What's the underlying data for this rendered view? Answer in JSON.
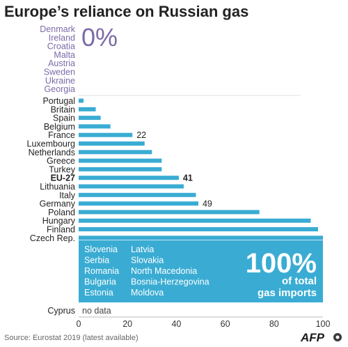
{
  "chart_data": {
    "type": "bar",
    "orientation": "horizontal",
    "title": "Europe’s reliance on Russian gas",
    "unit_note": "of total gas imports",
    "xlim": [
      0,
      100
    ],
    "x_ticks": [
      "0",
      "20",
      "40",
      "60",
      "80",
      "100"
    ],
    "grid": false,
    "bar_color": "#3aacd3",
    "zero_group": {
      "label": "0%",
      "countries": [
        "Denmark",
        "Ireland",
        "Croatia",
        "Malta",
        "Austria",
        "Sweden",
        "Ukraine",
        "Georgia"
      ]
    },
    "categories": [
      "Portugal",
      "Britain",
      "Spain",
      "Belgium",
      "France",
      "Luxembourg",
      "Netherlands",
      "Greece",
      "Turkey",
      "EU-27",
      "Lithuania",
      "Italy",
      "Germany",
      "Poland",
      "Hungary",
      "Finland",
      "Czech Rep."
    ],
    "values": [
      2,
      7,
      9,
      13,
      22,
      27,
      30,
      34,
      34,
      41,
      43,
      48,
      49,
      74,
      95,
      98,
      100
    ],
    "value_labels": {
      "France": "22",
      "EU-27": "41",
      "Germany": "49"
    },
    "full_group": {
      "label": "100%",
      "sublabel_1": "of total",
      "sublabel_2": "gas imports",
      "column_1": [
        "Slovenia",
        "Serbia",
        "Romania",
        "Bulgaria",
        "Estonia"
      ],
      "column_2": [
        "Latvia",
        "Slovakia",
        "North Macedonia",
        "Bosnia-Herzegovina",
        "Moldova"
      ]
    },
    "no_data": {
      "country": "Cyprus",
      "text": "no data"
    }
  },
  "source": "Source: Eurostat 2019 (latest available)",
  "brand": "AFP"
}
